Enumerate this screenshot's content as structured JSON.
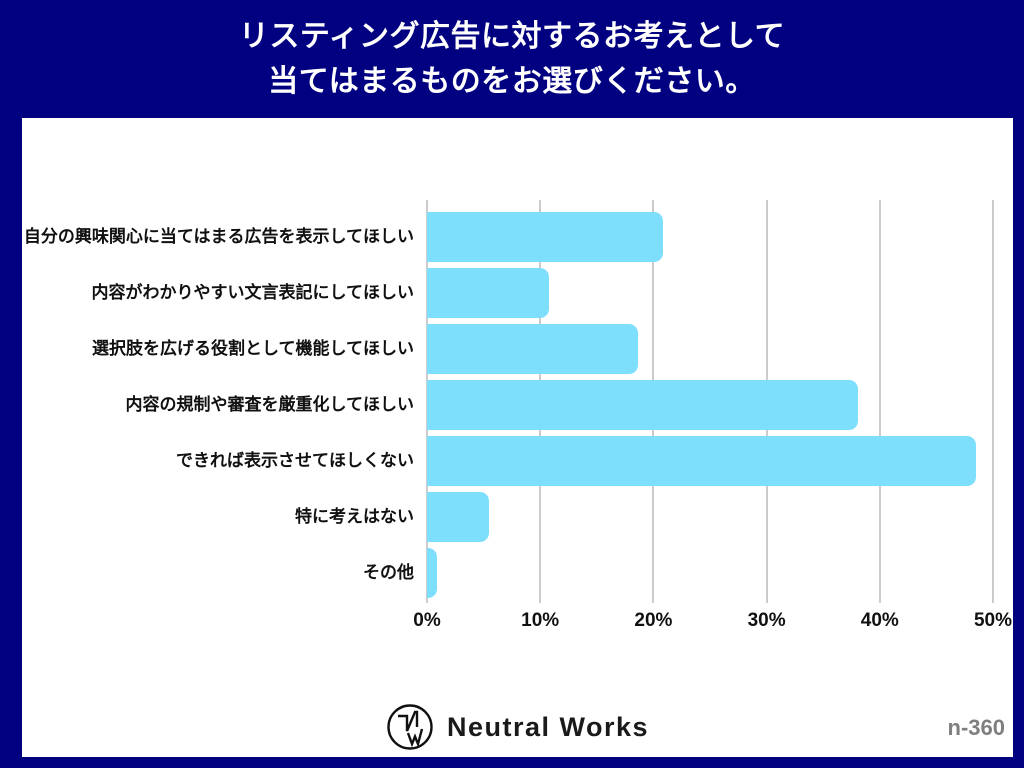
{
  "title": {
    "line1": "リスティング広告に対するお考えとして",
    "line2": "当てはまるものをお選びください。"
  },
  "chart_data": {
    "type": "bar",
    "orientation": "horizontal",
    "title": "リスティング広告に対するお考えとして当てはまるものをお選びください。",
    "categories": [
      "自分の興味関心に当てはまる広告を表示してほしい",
      "内容がわかりやすい文言表記にしてほしい",
      "選択肢を広げる役割として機能してほしい",
      "内容の規制や審査を厳重化してほしい",
      "できれば表示させてほしくない",
      "特に考えはない",
      "その他"
    ],
    "values": [
      20.8,
      10.8,
      18.6,
      38.1,
      48.5,
      5.5,
      0.9
    ],
    "unit": "%",
    "xlim": [
      0,
      50
    ],
    "x_tick_values": [
      0,
      10,
      20,
      30,
      40,
      50
    ],
    "x_tick_labels": [
      "0%",
      "10%",
      "20%",
      "30%",
      "40%",
      "50%"
    ],
    "grid": true,
    "legend": false,
    "bar_color": "#7edffc"
  },
  "footer": {
    "brand": "Neutral Works",
    "logo_icon": "neutral-works-monogram-icon",
    "sample_label": "n-360"
  },
  "colors": {
    "background": "#000080",
    "panel": "#ffffff",
    "bar": "#7edffc",
    "grid": "#cccccc",
    "title_text": "#ffffff",
    "label_text": "#111111",
    "sample_text": "#7f7f7f"
  }
}
